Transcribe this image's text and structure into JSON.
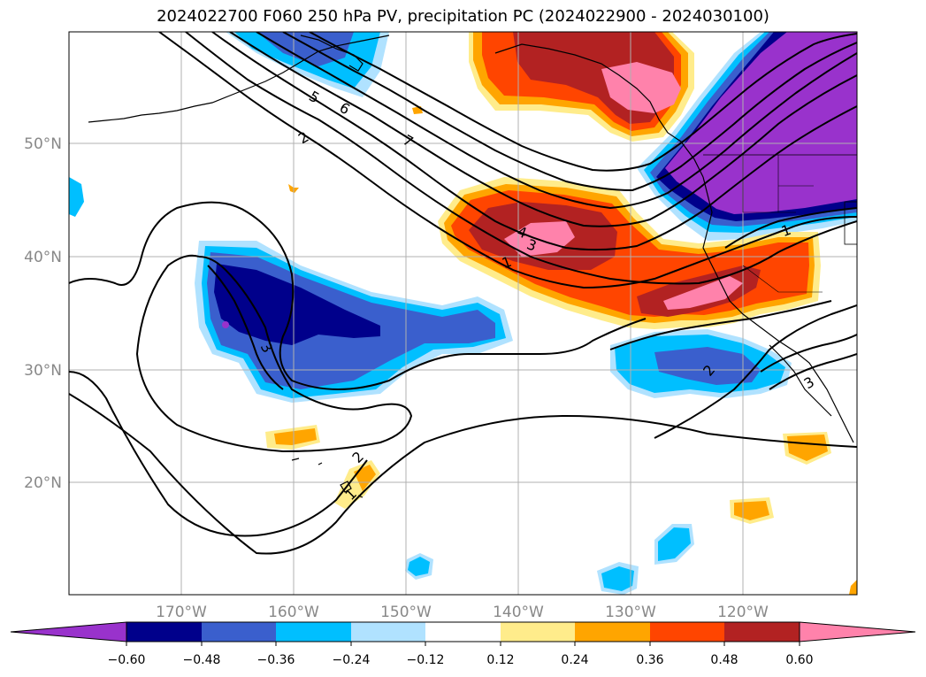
{
  "title": "2024022700 F060 250 hPa PV, precipitation PC (2024022900 - 2024030100)",
  "map": {
    "lat_labels": [
      "50°N",
      "40°N",
      "30°N",
      "20°N"
    ],
    "lon_labels": [
      "170°W",
      "160°W",
      "150°W",
      "140°W",
      "130°W",
      "120°W"
    ],
    "pv_contour_labels": [
      "1",
      "2",
      "3",
      "4",
      "5",
      "6",
      "7"
    ],
    "colors": {
      "coastline": "#000000",
      "grid": "#b0b0b0",
      "pv_contour": "#000000"
    }
  },
  "colorbar": {
    "ticks": [
      "−0.60",
      "−0.48",
      "−0.36",
      "−0.24",
      "−0.12",
      "0.12",
      "0.24",
      "0.36",
      "0.48",
      "0.60"
    ],
    "colors": [
      "#9932cc",
      "#00008b",
      "#3a5fcd",
      "#00bfff",
      "#b0e2ff",
      "#ffffff",
      "#ffec8b",
      "#ffa500",
      "#ff4500",
      "#b22222",
      "#ff82ab"
    ]
  }
}
